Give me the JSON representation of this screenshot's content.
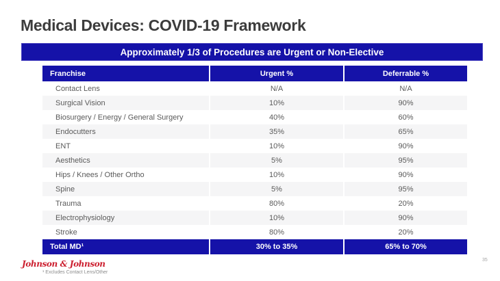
{
  "slide": {
    "title": "Medical Devices: COVID-19 Framework",
    "banner": "Approximately 1/3 of Procedures are Urgent or Non-Elective",
    "footnote": "¹ Excludes Contact Lens/Other",
    "page_number": "35",
    "logo_text": "Johnson & Johnson"
  },
  "colors": {
    "navy": "#1512a8",
    "alt_row_gray": "#f5f5f6",
    "body_text_gray": "#5a5a5a",
    "title_gray": "#3c3c3c",
    "logo_red": "#cc1f2f"
  },
  "table": {
    "columns": [
      "Franchise",
      "Urgent %",
      "Deferrable %"
    ],
    "rows": [
      {
        "franchise": "Contact Lens",
        "urgent": "N/A",
        "deferrable": "N/A"
      },
      {
        "franchise": "Surgical Vision",
        "urgent": "10%",
        "deferrable": "90%"
      },
      {
        "franchise": "Biosurgery / Energy / General Surgery",
        "urgent": "40%",
        "deferrable": "60%"
      },
      {
        "franchise": "Endocutters",
        "urgent": "35%",
        "deferrable": "65%"
      },
      {
        "franchise": "ENT",
        "urgent": "10%",
        "deferrable": "90%"
      },
      {
        "franchise": "Aesthetics",
        "urgent": "5%",
        "deferrable": "95%"
      },
      {
        "franchise": "Hips / Knees / Other Ortho",
        "urgent": "10%",
        "deferrable": "90%"
      },
      {
        "franchise": "Spine",
        "urgent": "5%",
        "deferrable": "95%"
      },
      {
        "franchise": "Trauma",
        "urgent": "80%",
        "deferrable": "20%"
      },
      {
        "franchise": "Electrophysiology",
        "urgent": "10%",
        "deferrable": "90%"
      },
      {
        "franchise": "Stroke",
        "urgent": "80%",
        "deferrable": "20%"
      }
    ],
    "total": {
      "franchise": "Total MD¹",
      "urgent": "30% to 35%",
      "deferrable": "65% to 70%"
    }
  }
}
